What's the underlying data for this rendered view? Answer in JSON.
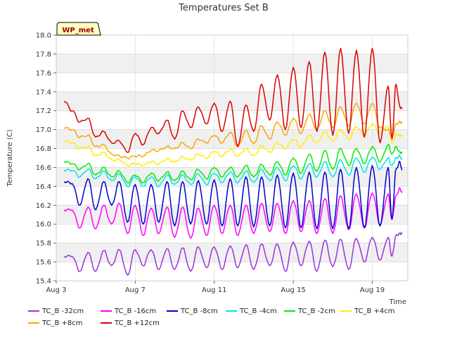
{
  "chart_data": {
    "type": "line",
    "title": "Temperatures Set B",
    "xlabel": "Time",
    "ylabel": "Temperature (C)",
    "badge": "WP_met",
    "xlim": [
      3,
      20.8
    ],
    "ylim": [
      15.4,
      18.0
    ],
    "x_ticks": [
      {
        "value": 3,
        "label": "Aug 3"
      },
      {
        "value": 7,
        "label": "Aug 7"
      },
      {
        "value": 11,
        "label": "Aug 11"
      },
      {
        "value": 15,
        "label": "Aug 15"
      },
      {
        "value": 19,
        "label": "Aug 19"
      }
    ],
    "y_ticks": [
      15.4,
      15.6,
      15.8,
      16.0,
      16.2,
      16.4,
      16.6,
      16.8,
      17.0,
      17.2,
      17.4,
      17.6,
      17.8,
      18.0
    ],
    "grid": true,
    "legend_position": "bottom",
    "series": [
      {
        "name": "TC_B -32cm",
        "color": "#9933dd",
        "x": [
          3.4,
          3.8,
          4.2,
          4.6,
          5.0,
          5.4,
          5.8,
          6.2,
          6.6,
          7.0,
          7.4,
          7.8,
          8.2,
          8.6,
          9.0,
          9.4,
          9.8,
          10.2,
          10.6,
          11.0,
          11.4,
          11.8,
          12.2,
          12.6,
          13.0,
          13.4,
          13.8,
          14.2,
          14.6,
          15.0,
          15.4,
          15.8,
          16.2,
          16.6,
          17.0,
          17.4,
          17.8,
          18.2,
          18.6,
          19.0,
          19.4,
          19.8,
          20.0,
          20.2,
          20.4,
          20.5
        ],
        "y": [
          15.66,
          15.66,
          15.5,
          15.7,
          15.5,
          15.72,
          15.56,
          15.73,
          15.46,
          15.73,
          15.56,
          15.73,
          15.52,
          15.74,
          15.52,
          15.75,
          15.5,
          15.76,
          15.54,
          15.76,
          15.52,
          15.77,
          15.54,
          15.78,
          15.52,
          15.79,
          15.56,
          15.79,
          15.5,
          15.81,
          15.56,
          15.82,
          15.5,
          15.83,
          15.55,
          15.84,
          15.52,
          15.85,
          15.6,
          15.86,
          15.62,
          15.86,
          15.66,
          15.88,
          15.9,
          15.9
        ]
      },
      {
        "name": "TC_B -16cm",
        "color": "#ff00ff",
        "x": [
          3.4,
          3.8,
          4.2,
          4.6,
          5.0,
          5.4,
          5.8,
          6.2,
          6.6,
          7.0,
          7.4,
          7.8,
          8.2,
          8.6,
          9.0,
          9.4,
          9.8,
          10.2,
          10.6,
          11.0,
          11.4,
          11.8,
          12.2,
          12.6,
          13.0,
          13.4,
          13.8,
          14.2,
          14.6,
          15.0,
          15.4,
          15.8,
          16.2,
          16.6,
          17.0,
          17.4,
          17.8,
          18.2,
          18.6,
          19.0,
          19.4,
          19.8,
          20.0,
          20.2,
          20.4,
          20.5
        ],
        "y": [
          16.15,
          16.15,
          15.96,
          16.18,
          15.95,
          16.2,
          16.0,
          16.22,
          15.9,
          16.2,
          15.88,
          16.17,
          15.9,
          16.18,
          15.86,
          16.18,
          15.85,
          16.17,
          15.88,
          16.2,
          15.9,
          16.2,
          15.88,
          16.2,
          15.9,
          16.22,
          15.92,
          16.22,
          15.9,
          16.25,
          15.92,
          16.25,
          15.9,
          16.27,
          15.9,
          16.3,
          15.94,
          16.32,
          15.96,
          16.33,
          15.99,
          16.32,
          16.05,
          16.3,
          16.38,
          16.33
        ]
      },
      {
        "name": "TC_B -8cm",
        "color": "#0000cc",
        "x": [
          3.4,
          3.8,
          4.2,
          4.6,
          5.0,
          5.4,
          5.8,
          6.2,
          6.6,
          7.0,
          7.4,
          7.8,
          8.2,
          8.6,
          9.0,
          9.4,
          9.8,
          10.2,
          10.6,
          11.0,
          11.4,
          11.8,
          12.2,
          12.6,
          13.0,
          13.4,
          13.8,
          14.2,
          14.6,
          15.0,
          15.4,
          15.8,
          16.2,
          16.6,
          17.0,
          17.4,
          17.8,
          18.2,
          18.6,
          19.0,
          19.4,
          19.8,
          20.0,
          20.2,
          20.4,
          20.5
        ],
        "y": [
          16.45,
          16.43,
          16.2,
          16.48,
          16.15,
          16.45,
          16.2,
          16.45,
          16.02,
          16.42,
          16.0,
          16.42,
          16.02,
          16.45,
          15.98,
          16.45,
          16.0,
          16.46,
          16.0,
          16.47,
          15.98,
          16.48,
          15.98,
          16.5,
          15.97,
          16.5,
          15.98,
          16.52,
          15.96,
          16.54,
          15.96,
          16.55,
          15.95,
          16.55,
          15.95,
          16.58,
          15.95,
          16.6,
          15.96,
          16.62,
          15.98,
          16.6,
          16.05,
          16.58,
          16.66,
          16.57
        ]
      },
      {
        "name": "TC_B -4cm",
        "color": "#00e5ee",
        "x": [
          3.4,
          3.8,
          4.2,
          4.6,
          5.0,
          5.4,
          5.8,
          6.2,
          6.6,
          7.0,
          7.4,
          7.8,
          8.2,
          8.6,
          9.0,
          9.4,
          9.8,
          10.2,
          10.6,
          11.0,
          11.4,
          11.8,
          12.2,
          12.6,
          13.0,
          13.4,
          13.8,
          14.2,
          14.6,
          15.0,
          15.4,
          15.8,
          16.2,
          16.6,
          17.0,
          17.4,
          17.8,
          18.2,
          18.6,
          19.0,
          19.4,
          19.8,
          20.0,
          20.2,
          20.4,
          20.5
        ],
        "y": [
          16.57,
          16.57,
          16.5,
          16.58,
          16.48,
          16.56,
          16.46,
          16.53,
          16.4,
          16.5,
          16.4,
          16.5,
          16.4,
          16.52,
          16.42,
          16.52,
          16.42,
          16.53,
          16.42,
          16.54,
          16.44,
          16.55,
          16.44,
          16.56,
          16.44,
          16.58,
          16.46,
          16.6,
          16.46,
          16.62,
          16.48,
          16.64,
          16.5,
          16.66,
          16.5,
          16.68,
          16.52,
          16.7,
          16.55,
          16.71,
          16.58,
          16.7,
          16.62,
          16.7,
          16.72,
          16.68
        ]
      },
      {
        "name": "TC_B -2cm",
        "color": "#00ee00",
        "x": [
          3.4,
          3.8,
          4.2,
          4.6,
          5.0,
          5.4,
          5.8,
          6.2,
          6.6,
          7.0,
          7.4,
          7.8,
          8.2,
          8.6,
          9.0,
          9.4,
          9.8,
          10.2,
          10.6,
          11.0,
          11.4,
          11.8,
          12.2,
          12.6,
          13.0,
          13.4,
          13.8,
          14.2,
          14.6,
          15.0,
          15.4,
          15.8,
          16.2,
          16.6,
          17.0,
          17.4,
          17.8,
          18.2,
          18.6,
          19.0,
          19.4,
          19.8,
          20.0,
          20.2,
          20.4,
          20.5
        ],
        "y": [
          16.66,
          16.64,
          16.58,
          16.64,
          16.52,
          16.6,
          16.5,
          16.56,
          16.44,
          16.52,
          16.44,
          16.54,
          16.46,
          16.55,
          16.46,
          16.56,
          16.47,
          16.58,
          16.48,
          16.6,
          16.5,
          16.6,
          16.5,
          16.62,
          16.5,
          16.63,
          16.52,
          16.66,
          16.52,
          16.7,
          16.54,
          16.74,
          16.56,
          16.78,
          16.58,
          16.8,
          16.62,
          16.8,
          16.64,
          16.82,
          16.66,
          16.84,
          16.74,
          16.82,
          16.76,
          16.75
        ]
      },
      {
        "name": "TC_B +4cm",
        "color": "#ffee00",
        "x": [
          3.4,
          3.8,
          4.2,
          4.6,
          5.0,
          5.4,
          5.8,
          6.2,
          6.6,
          7.0,
          7.4,
          7.8,
          8.2,
          8.6,
          9.0,
          9.4,
          9.8,
          10.2,
          10.6,
          11.0,
          11.4,
          11.8,
          12.2,
          12.6,
          13.0,
          13.4,
          13.8,
          14.2,
          14.6,
          15.0,
          15.4,
          15.8,
          16.2,
          16.6,
          17.0,
          17.4,
          17.8,
          18.2,
          18.6,
          19.0,
          19.4,
          19.8,
          20.0,
          20.2,
          20.4,
          20.5
        ],
        "y": [
          16.88,
          16.86,
          16.8,
          16.82,
          16.72,
          16.76,
          16.68,
          16.68,
          16.62,
          16.64,
          16.62,
          16.66,
          16.64,
          16.69,
          16.66,
          16.71,
          16.68,
          16.74,
          16.7,
          16.77,
          16.72,
          16.79,
          16.72,
          16.8,
          16.72,
          16.83,
          16.76,
          16.86,
          16.8,
          16.9,
          16.82,
          16.94,
          16.86,
          16.98,
          16.88,
          17.0,
          16.9,
          17.03,
          16.94,
          17.06,
          16.96,
          17.04,
          16.86,
          16.95,
          16.94,
          16.93
        ]
      },
      {
        "name": "TC_B +8cm",
        "color": "#ffa500",
        "x": [
          3.4,
          3.8,
          4.2,
          4.6,
          5.0,
          5.4,
          5.8,
          6.2,
          6.6,
          7.0,
          7.4,
          7.8,
          8.2,
          8.6,
          9.0,
          9.4,
          9.8,
          10.2,
          10.6,
          11.0,
          11.4,
          11.8,
          12.2,
          12.6,
          13.0,
          13.4,
          13.8,
          14.2,
          14.6,
          15.0,
          15.4,
          15.8,
          16.2,
          16.6,
          17.0,
          17.4,
          17.8,
          18.2,
          18.6,
          19.0,
          19.4,
          19.8,
          20.0,
          20.2,
          20.4,
          20.5
        ],
        "y": [
          17.02,
          17.0,
          16.92,
          16.94,
          16.82,
          16.84,
          16.74,
          16.72,
          16.7,
          16.72,
          16.72,
          16.78,
          16.78,
          16.82,
          16.8,
          16.86,
          16.8,
          16.9,
          16.86,
          16.94,
          16.86,
          16.97,
          16.82,
          16.99,
          16.85,
          17.04,
          16.9,
          17.08,
          16.94,
          17.12,
          16.96,
          17.16,
          17.0,
          17.2,
          17.02,
          17.24,
          17.04,
          17.28,
          17.06,
          17.28,
          17.02,
          17.0,
          16.92,
          17.06,
          17.08,
          17.07
        ]
      },
      {
        "name": "TC_B +12cm",
        "color": "#dd0000",
        "x": [
          3.4,
          3.8,
          4.2,
          4.6,
          5.0,
          5.4,
          5.8,
          6.2,
          6.6,
          7.0,
          7.4,
          7.8,
          8.2,
          8.6,
          9.0,
          9.4,
          9.8,
          10.2,
          10.6,
          11.0,
          11.4,
          11.8,
          12.2,
          12.6,
          13.0,
          13.4,
          13.8,
          14.2,
          14.6,
          15.0,
          15.4,
          15.8,
          16.2,
          16.6,
          17.0,
          17.4,
          17.8,
          18.2,
          18.6,
          19.0,
          19.4,
          19.8,
          20.0,
          20.2,
          20.4,
          20.5
        ],
        "y": [
          17.3,
          17.2,
          17.08,
          17.12,
          16.92,
          16.98,
          16.86,
          16.88,
          16.76,
          16.96,
          16.84,
          17.02,
          16.96,
          17.1,
          16.9,
          17.2,
          17.02,
          17.24,
          17.06,
          17.28,
          16.98,
          17.3,
          16.82,
          17.26,
          16.98,
          17.48,
          17.1,
          17.58,
          17.0,
          17.66,
          17.02,
          17.72,
          16.98,
          17.82,
          16.94,
          17.86,
          16.96,
          17.84,
          16.92,
          17.86,
          16.86,
          17.46,
          16.9,
          17.48,
          17.24,
          17.22
        ]
      }
    ]
  }
}
